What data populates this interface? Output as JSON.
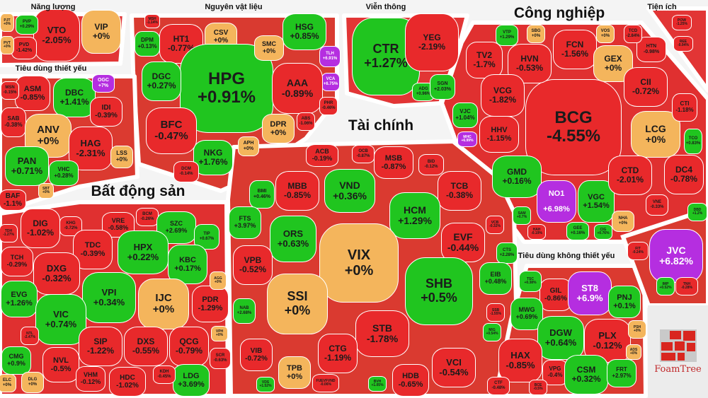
{
  "colors": {
    "down": "#e8292b",
    "up": "#20c51f",
    "flat": "#f4b55c",
    "ceiling": "#b52ee0"
  },
  "sectors": [
    {
      "title": "Năng lượng"
    },
    {
      "title": "Nguyên vật liệu"
    },
    {
      "title": "Viễn thông"
    },
    {
      "title": "Công nghiệp"
    },
    {
      "title": "Tiện ích"
    },
    {
      "title": "Tiêu dùng thiết yếu"
    },
    {
      "title": "Bất động sản"
    },
    {
      "title": "Tài chính"
    },
    {
      "title": "Tiêu dùng không thiết yếu"
    }
  ],
  "stocks": [
    {
      "ticker": "VTO",
      "change": "-2.05%",
      "status": "down"
    },
    {
      "ticker": "VIP",
      "change": "+0%",
      "status": "flat"
    },
    {
      "ticker": "PVD",
      "change": "-1.42%",
      "status": "down"
    },
    {
      "ticker": "PVP",
      "change": "+0.29%",
      "status": "up"
    },
    {
      "ticker": "PJT",
      "change": "+0%",
      "status": "flat"
    },
    {
      "ticker": "PVT",
      "change": "+0%",
      "status": "flat"
    },
    {
      "ticker": "ASM",
      "change": "-0.85%",
      "status": "down"
    },
    {
      "ticker": "DBC",
      "change": "+1.41%",
      "status": "up"
    },
    {
      "ticker": "OGC",
      "change": "+7%",
      "status": "ceiling"
    },
    {
      "ticker": "IDI",
      "change": "-0.39%",
      "status": "down"
    },
    {
      "ticker": "SAB",
      "change": "-0.38%",
      "status": "down"
    },
    {
      "ticker": "ANV",
      "change": "+0%",
      "status": "flat"
    },
    {
      "ticker": "HAG",
      "change": "-2.31%",
      "status": "down"
    },
    {
      "ticker": "PAN",
      "change": "+0.71%",
      "status": "up"
    },
    {
      "ticker": "VHC",
      "change": "+0.28%",
      "status": "up"
    },
    {
      "ticker": "LSS",
      "change": "+0%",
      "status": "flat"
    },
    {
      "ticker": "MSN",
      "change": "-0.15%",
      "status": "down"
    },
    {
      "ticker": "SBT",
      "change": "+0%",
      "status": "flat"
    },
    {
      "ticker": "BAF",
      "change": "-1.1%",
      "status": "down"
    },
    {
      "ticker": "HT1",
      "change": "-0.77%",
      "status": "down"
    },
    {
      "ticker": "CSV",
      "change": "+0%",
      "status": "flat"
    },
    {
      "ticker": "HPG",
      "change": "+0.91%",
      "status": "up"
    },
    {
      "ticker": "HSG",
      "change": "+0.85%",
      "status": "up"
    },
    {
      "ticker": "SMC",
      "change": "+0%",
      "status": "flat"
    },
    {
      "ticker": "TLH",
      "change": "+6.91%",
      "status": "ceiling"
    },
    {
      "ticker": "VCA",
      "change": "+6.75%",
      "status": "ceiling"
    },
    {
      "ticker": "AAA",
      "change": "-0.89%",
      "status": "down"
    },
    {
      "ticker": "DGC",
      "change": "+0.27%",
      "status": "up"
    },
    {
      "ticker": "DPM",
      "change": "+0.13%",
      "status": "up"
    },
    {
      "ticker": "BFC",
      "change": "-0.47%",
      "status": "down"
    },
    {
      "ticker": "NKG",
      "change": "+1.76%",
      "status": "up"
    },
    {
      "ticker": "DPR",
      "change": "+0%",
      "status": "flat"
    },
    {
      "ticker": "APH",
      "change": "+0%",
      "status": "flat"
    },
    {
      "ticker": "PHR",
      "change": "-0.46%",
      "status": "down"
    },
    {
      "ticker": "ABS",
      "change": "-1.06%",
      "status": "down"
    },
    {
      "ticker": "DCM",
      "change": "-0.14%",
      "status": "down"
    },
    {
      "ticker": "MSH",
      "change": "-1.14%",
      "status": "down"
    },
    {
      "ticker": "CTR",
      "change": "+1.27%",
      "status": "up"
    },
    {
      "ticker": "YEG",
      "change": "-2.19%",
      "status": "down"
    },
    {
      "ticker": "ADG",
      "change": "+0.96%",
      "status": "up"
    },
    {
      "ticker": "BCG",
      "change": "-4.55%",
      "status": "down"
    },
    {
      "ticker": "FCN",
      "change": "-1.56%",
      "status": "down"
    },
    {
      "ticker": "HVN",
      "change": "-0.53%",
      "status": "down"
    },
    {
      "ticker": "TV2",
      "change": "-1.7%",
      "status": "down"
    },
    {
      "ticker": "VCG",
      "change": "-1.82%",
      "status": "down"
    },
    {
      "ticker": "GEX",
      "change": "+0%",
      "status": "flat"
    },
    {
      "ticker": "CII",
      "change": "-0.72%",
      "status": "down"
    },
    {
      "ticker": "HHV",
      "change": "-1.15%",
      "status": "down"
    },
    {
      "ticker": "LCG",
      "change": "+0%",
      "status": "flat"
    },
    {
      "ticker": "GMD",
      "change": "+0.16%",
      "status": "up"
    },
    {
      "ticker": "NO1",
      "change": "+6.98%",
      "status": "ceiling"
    },
    {
      "ticker": "VGC",
      "change": "+1.54%",
      "status": "up"
    },
    {
      "ticker": "CTD",
      "change": "-2.01%",
      "status": "down"
    },
    {
      "ticker": "DC4",
      "change": "-0.78%",
      "status": "down"
    },
    {
      "ticker": "HTN",
      "change": "-0.98%",
      "status": "down"
    },
    {
      "ticker": "CTI",
      "change": "-1.18%",
      "status": "down"
    },
    {
      "ticker": "TCO",
      "change": "+0.83%",
      "status": "up"
    },
    {
      "ticker": "VTP",
      "change": "+1.29%",
      "status": "up"
    },
    {
      "ticker": "SBG",
      "change": "+0%",
      "status": "flat"
    },
    {
      "ticker": "VOS",
      "change": "+0%",
      "status": "flat"
    },
    {
      "ticker": "TCD",
      "change": "-2.84%",
      "status": "down"
    },
    {
      "ticker": "SGN",
      "change": "+2.03%",
      "status": "up"
    },
    {
      "ticker": "VJC",
      "change": "+1.04%",
      "status": "up"
    },
    {
      "ticker": "NHA",
      "change": "+0%",
      "status": "flat"
    },
    {
      "ticker": "VNE",
      "change": "-0.33%",
      "status": "down"
    },
    {
      "ticker": "SAM",
      "change": "+0.7%",
      "status": "up"
    },
    {
      "ticker": "HAH",
      "change": "-0.19%",
      "status": "down"
    },
    {
      "ticker": "GEE",
      "change": "+0.16%",
      "status": "up"
    },
    {
      "ticker": "CIG",
      "change": "+0.76%",
      "status": "up"
    },
    {
      "ticker": "MHC",
      "change": "+6.99%",
      "status": "ceiling"
    },
    {
      "ticker": "POW",
      "change": "-1.25%",
      "status": "down"
    },
    {
      "ticker": "REE",
      "change": "-0.94%",
      "status": "down"
    },
    {
      "ticker": "JVC",
      "change": "+6.82%",
      "status": "ceiling"
    },
    {
      "ticker": "FIT",
      "change": "-0.24%",
      "status": "down"
    },
    {
      "ticker": "TNH",
      "change": "-0.28%",
      "status": "down"
    },
    {
      "ticker": "IMP",
      "change": "+0.52%",
      "status": "up"
    },
    {
      "ticker": "DBD",
      "change": "+1.2%",
      "status": "up"
    },
    {
      "ticker": "DIG",
      "change": "-1.02%",
      "status": "down"
    },
    {
      "ticker": "KHG",
      "change": "-0.72%",
      "status": "down"
    },
    {
      "ticker": "VRE",
      "change": "-0.58%",
      "status": "down"
    },
    {
      "ticker": "BCM",
      "change": "-0.26%",
      "status": "down"
    },
    {
      "ticker": "SZC",
      "change": "+2.69%",
      "status": "up"
    },
    {
      "ticker": "TIP",
      "change": "+0.67%",
      "status": "up"
    },
    {
      "ticker": "TDH",
      "change": "-1.27%",
      "status": "down"
    },
    {
      "ticker": "TDC",
      "change": "-0.39%",
      "status": "down"
    },
    {
      "ticker": "TCH",
      "change": "-0.29%",
      "status": "down"
    },
    {
      "ticker": "DXG",
      "change": "-0.32%",
      "status": "down"
    },
    {
      "ticker": "HPX",
      "change": "+0.22%",
      "status": "up"
    },
    {
      "ticker": "KBC",
      "change": "+0.17%",
      "status": "up"
    },
    {
      "ticker": "VPI",
      "change": "+0.34%",
      "status": "up"
    },
    {
      "ticker": "IJC",
      "change": "+0%",
      "status": "flat"
    },
    {
      "ticker": "PDR",
      "change": "-1.29%",
      "status": "down"
    },
    {
      "ticker": "EVG",
      "change": "+1.26%",
      "status": "up"
    },
    {
      "ticker": "VIC",
      "change": "+0.74%",
      "status": "up"
    },
    {
      "ticker": "SIP",
      "change": "-1.22%",
      "status": "down"
    },
    {
      "ticker": "DXS",
      "change": "-0.55%",
      "status": "down"
    },
    {
      "ticker": "QCG",
      "change": "-0.79%",
      "status": "down"
    },
    {
      "ticker": "NVL",
      "change": "-0.5%",
      "status": "down"
    },
    {
      "ticker": "VHM",
      "change": "-0.12%",
      "status": "down"
    },
    {
      "ticker": "HDC",
      "change": "-1.02%",
      "status": "down"
    },
    {
      "ticker": "LDG",
      "change": "+3.69%",
      "status": "up"
    },
    {
      "ticker": "KDH",
      "change": "-0.45%",
      "status": "down"
    },
    {
      "ticker": "SCR",
      "change": "-0.63%",
      "status": "down"
    },
    {
      "ticker": "VPH",
      "change": "+0%",
      "status": "flat"
    },
    {
      "ticker": "AGG",
      "change": "+0%",
      "status": "flat"
    },
    {
      "ticker": "CMG",
      "change": "+0.9%",
      "status": "up"
    },
    {
      "ticker": "ELC",
      "change": "+0%",
      "status": "flat"
    },
    {
      "ticker": "DLG",
      "change": "+0%",
      "status": "flat"
    },
    {
      "ticker": "NTL",
      "change": "-2.47%",
      "status": "down"
    },
    {
      "ticker": "ACB",
      "change": "-0.19%",
      "status": "down"
    },
    {
      "ticker": "OCB",
      "change": "-0.87%",
      "status": "down"
    },
    {
      "ticker": "MSB",
      "change": "-0.87%",
      "status": "down"
    },
    {
      "ticker": "BID",
      "change": "-0.12%",
      "status": "down"
    },
    {
      "ticker": "MBB",
      "change": "-0.85%",
      "status": "down"
    },
    {
      "ticker": "VND",
      "change": "+0.36%",
      "status": "up"
    },
    {
      "ticker": "TCB",
      "change": "-0.38%",
      "status": "down"
    },
    {
      "ticker": "BMI",
      "change": "+0.46%",
      "status": "up"
    },
    {
      "ticker": "FTS",
      "change": "+3.97%",
      "status": "up"
    },
    {
      "ticker": "ORS",
      "change": "+0.63%",
      "status": "up"
    },
    {
      "ticker": "HCM",
      "change": "+1.29%",
      "status": "up"
    },
    {
      "ticker": "VIX",
      "change": "+0%",
      "status": "flat"
    },
    {
      "ticker": "EVF",
      "change": "-0.44%",
      "status": "down"
    },
    {
      "ticker": "VCB",
      "change": "-0.32%",
      "status": "down"
    },
    {
      "ticker": "CTS",
      "change": "+2.28%",
      "status": "up"
    },
    {
      "ticker": "VPB",
      "change": "-0.52%",
      "status": "down"
    },
    {
      "ticker": "SSI",
      "change": "+0%",
      "status": "flat"
    },
    {
      "ticker": "SHB",
      "change": "+0.5%",
      "status": "up"
    },
    {
      "ticker": "EIB",
      "change": "+0.48%",
      "status": "up"
    },
    {
      "ticker": "NAB",
      "change": "+2.68%",
      "status": "up"
    },
    {
      "ticker": "SSB",
      "change": "-1.55%",
      "status": "down"
    },
    {
      "ticker": "MIG",
      "change": "+0.54%",
      "status": "up"
    },
    {
      "ticker": "VIB",
      "change": "-0.72%",
      "status": "down"
    },
    {
      "ticker": "STB",
      "change": "-1.78%",
      "status": "down"
    },
    {
      "ticker": "CTG",
      "change": "-1.19%",
      "status": "down"
    },
    {
      "ticker": "VCI",
      "change": "-0.54%",
      "status": "down"
    },
    {
      "ticker": "TPB",
      "change": "+0%",
      "status": "flat"
    },
    {
      "ticker": "HDB",
      "change": "-0.65%",
      "status": "down"
    },
    {
      "ticker": "FUEVFVND",
      "change": "-0.06%",
      "status": "down"
    },
    {
      "ticker": "BVH",
      "change": "+1.05%",
      "status": "up"
    },
    {
      "ticker": "VDS",
      "change": "+1.52%",
      "status": "up"
    },
    {
      "ticker": "GIL",
      "change": "-0.86%",
      "status": "down"
    },
    {
      "ticker": "ST8",
      "change": "+6.9%",
      "status": "ceiling"
    },
    {
      "ticker": "PNJ",
      "change": "+0.1%",
      "status": "up"
    },
    {
      "ticker": "TSC",
      "change": "+0.38%",
      "status": "up"
    },
    {
      "ticker": "MWG",
      "change": "+0.69%",
      "status": "up"
    },
    {
      "ticker": "DGW",
      "change": "+0.64%",
      "status": "up"
    },
    {
      "ticker": "PLX",
      "change": "-0.12%",
      "status": "down"
    },
    {
      "ticker": "PSH",
      "change": "+0%",
      "status": "flat"
    },
    {
      "ticker": "HAX",
      "change": "-0.85%",
      "status": "down"
    },
    {
      "ticker": "VPG",
      "change": "-0.4%",
      "status": "down"
    },
    {
      "ticker": "CSM",
      "change": "+0.32%",
      "status": "up"
    },
    {
      "ticker": "FRT",
      "change": "+2.97%",
      "status": "up"
    },
    {
      "ticker": "CTF",
      "change": "-0.48%",
      "status": "down"
    },
    {
      "ticker": "BCE",
      "change": "-0.5%",
      "status": "down"
    },
    {
      "ticker": "ADS",
      "change": "+0%",
      "status": "flat"
    }
  ],
  "logo": {
    "text": "FoamTree"
  }
}
